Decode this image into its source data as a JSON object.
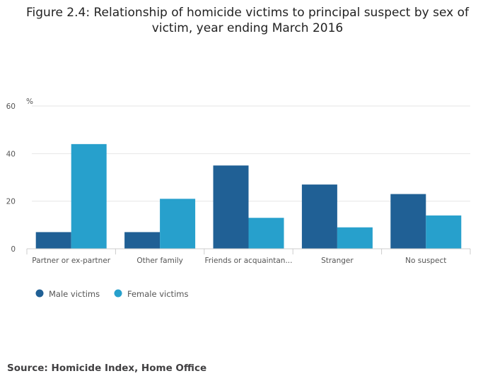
{
  "chart_data": {
    "type": "bar",
    "title": "Figure 2.4: Relationship of homicide victims to principal suspect by sex of victim, year ending March 2016",
    "ylabel": "%",
    "xlabel": "",
    "ylim": [
      0,
      60
    ],
    "yticks": [
      0,
      20,
      40,
      60
    ],
    "grid": true,
    "legend_position": "bottom-left",
    "categories": [
      "Partner or ex-partner",
      "Other family",
      "Friends or acquaintan...",
      "Stranger",
      "No suspect"
    ],
    "series": [
      {
        "name": "Male victims",
        "color": "#206095",
        "values": [
          7,
          7,
          35,
          27,
          23
        ]
      },
      {
        "name": "Female victims",
        "color": "#27a0cc",
        "values": [
          44,
          21,
          13,
          9,
          14
        ]
      }
    ]
  },
  "source": "Source: Homicide Index, Home Office"
}
